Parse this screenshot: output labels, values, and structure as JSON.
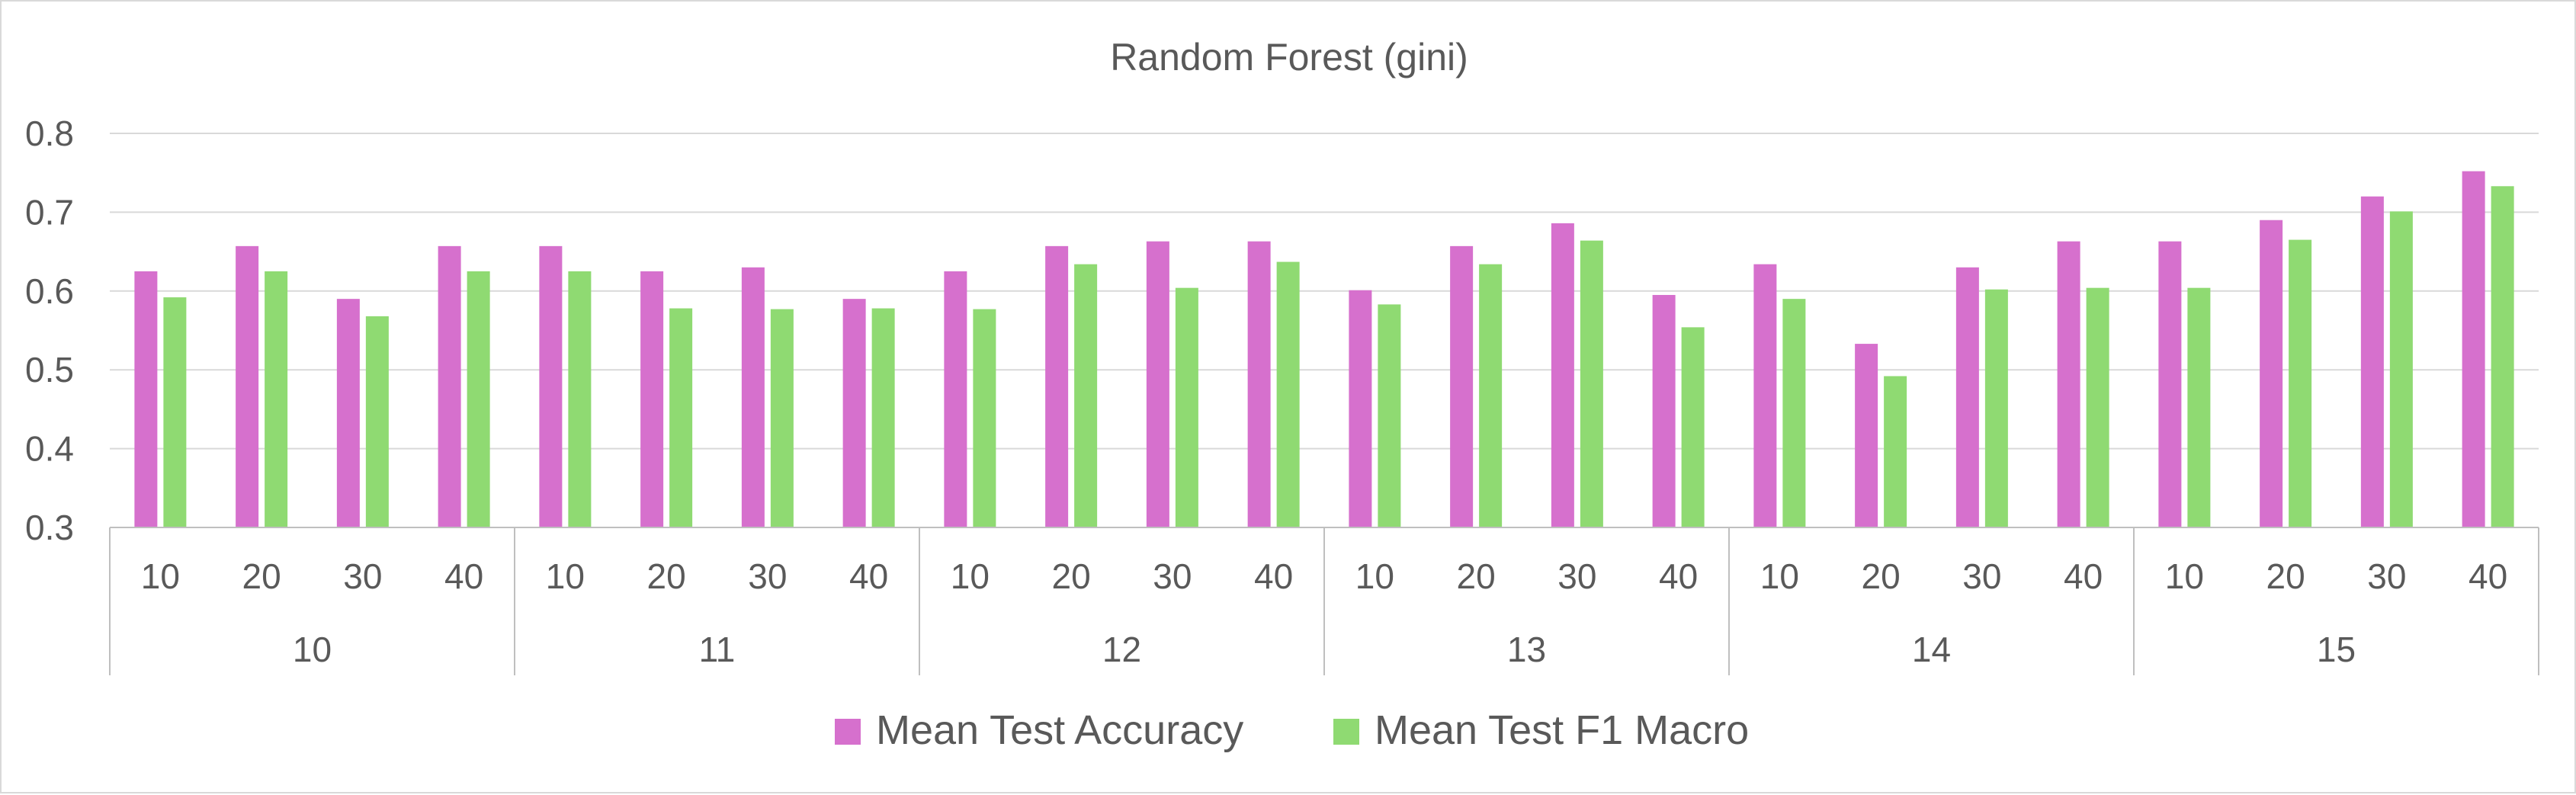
{
  "colors": {
    "accuracy": "#d670cd",
    "f1": "#8fda72",
    "gridline": "#d9d9d9",
    "axis": "#bfbfbf",
    "text": "#595959"
  },
  "chart_data": {
    "type": "bar",
    "title": "Random Forest (gini)",
    "ylim": [
      0.3,
      0.8
    ],
    "yticks": [
      "0.3",
      "0.4",
      "0.5",
      "0.6",
      "0.7",
      "0.8"
    ],
    "grid": true,
    "legend_position": "bottom",
    "groups": [
      "10",
      "11",
      "12",
      "13",
      "14",
      "15"
    ],
    "categories": [
      "10",
      "20",
      "30",
      "40"
    ],
    "series": [
      {
        "name": "Mean Test Accuracy",
        "values": [
          [
            0.625,
            0.657,
            0.59,
            0.657
          ],
          [
            0.657,
            0.625,
            0.63,
            0.59
          ],
          [
            0.625,
            0.657,
            0.663,
            0.663
          ],
          [
            0.601,
            0.657,
            0.686,
            0.595
          ],
          [
            0.634,
            0.533,
            0.63,
            0.663
          ],
          [
            0.663,
            0.69,
            0.72,
            0.752
          ]
        ]
      },
      {
        "name": "Mean Test F1 Macro",
        "values": [
          [
            0.592,
            0.625,
            0.568,
            0.625
          ],
          [
            0.625,
            0.578,
            0.577,
            0.578
          ],
          [
            0.577,
            0.634,
            0.604,
            0.637
          ],
          [
            0.583,
            0.634,
            0.664,
            0.554
          ],
          [
            0.59,
            0.492,
            0.602,
            0.604
          ],
          [
            0.604,
            0.665,
            0.701,
            0.733
          ]
        ]
      }
    ]
  }
}
